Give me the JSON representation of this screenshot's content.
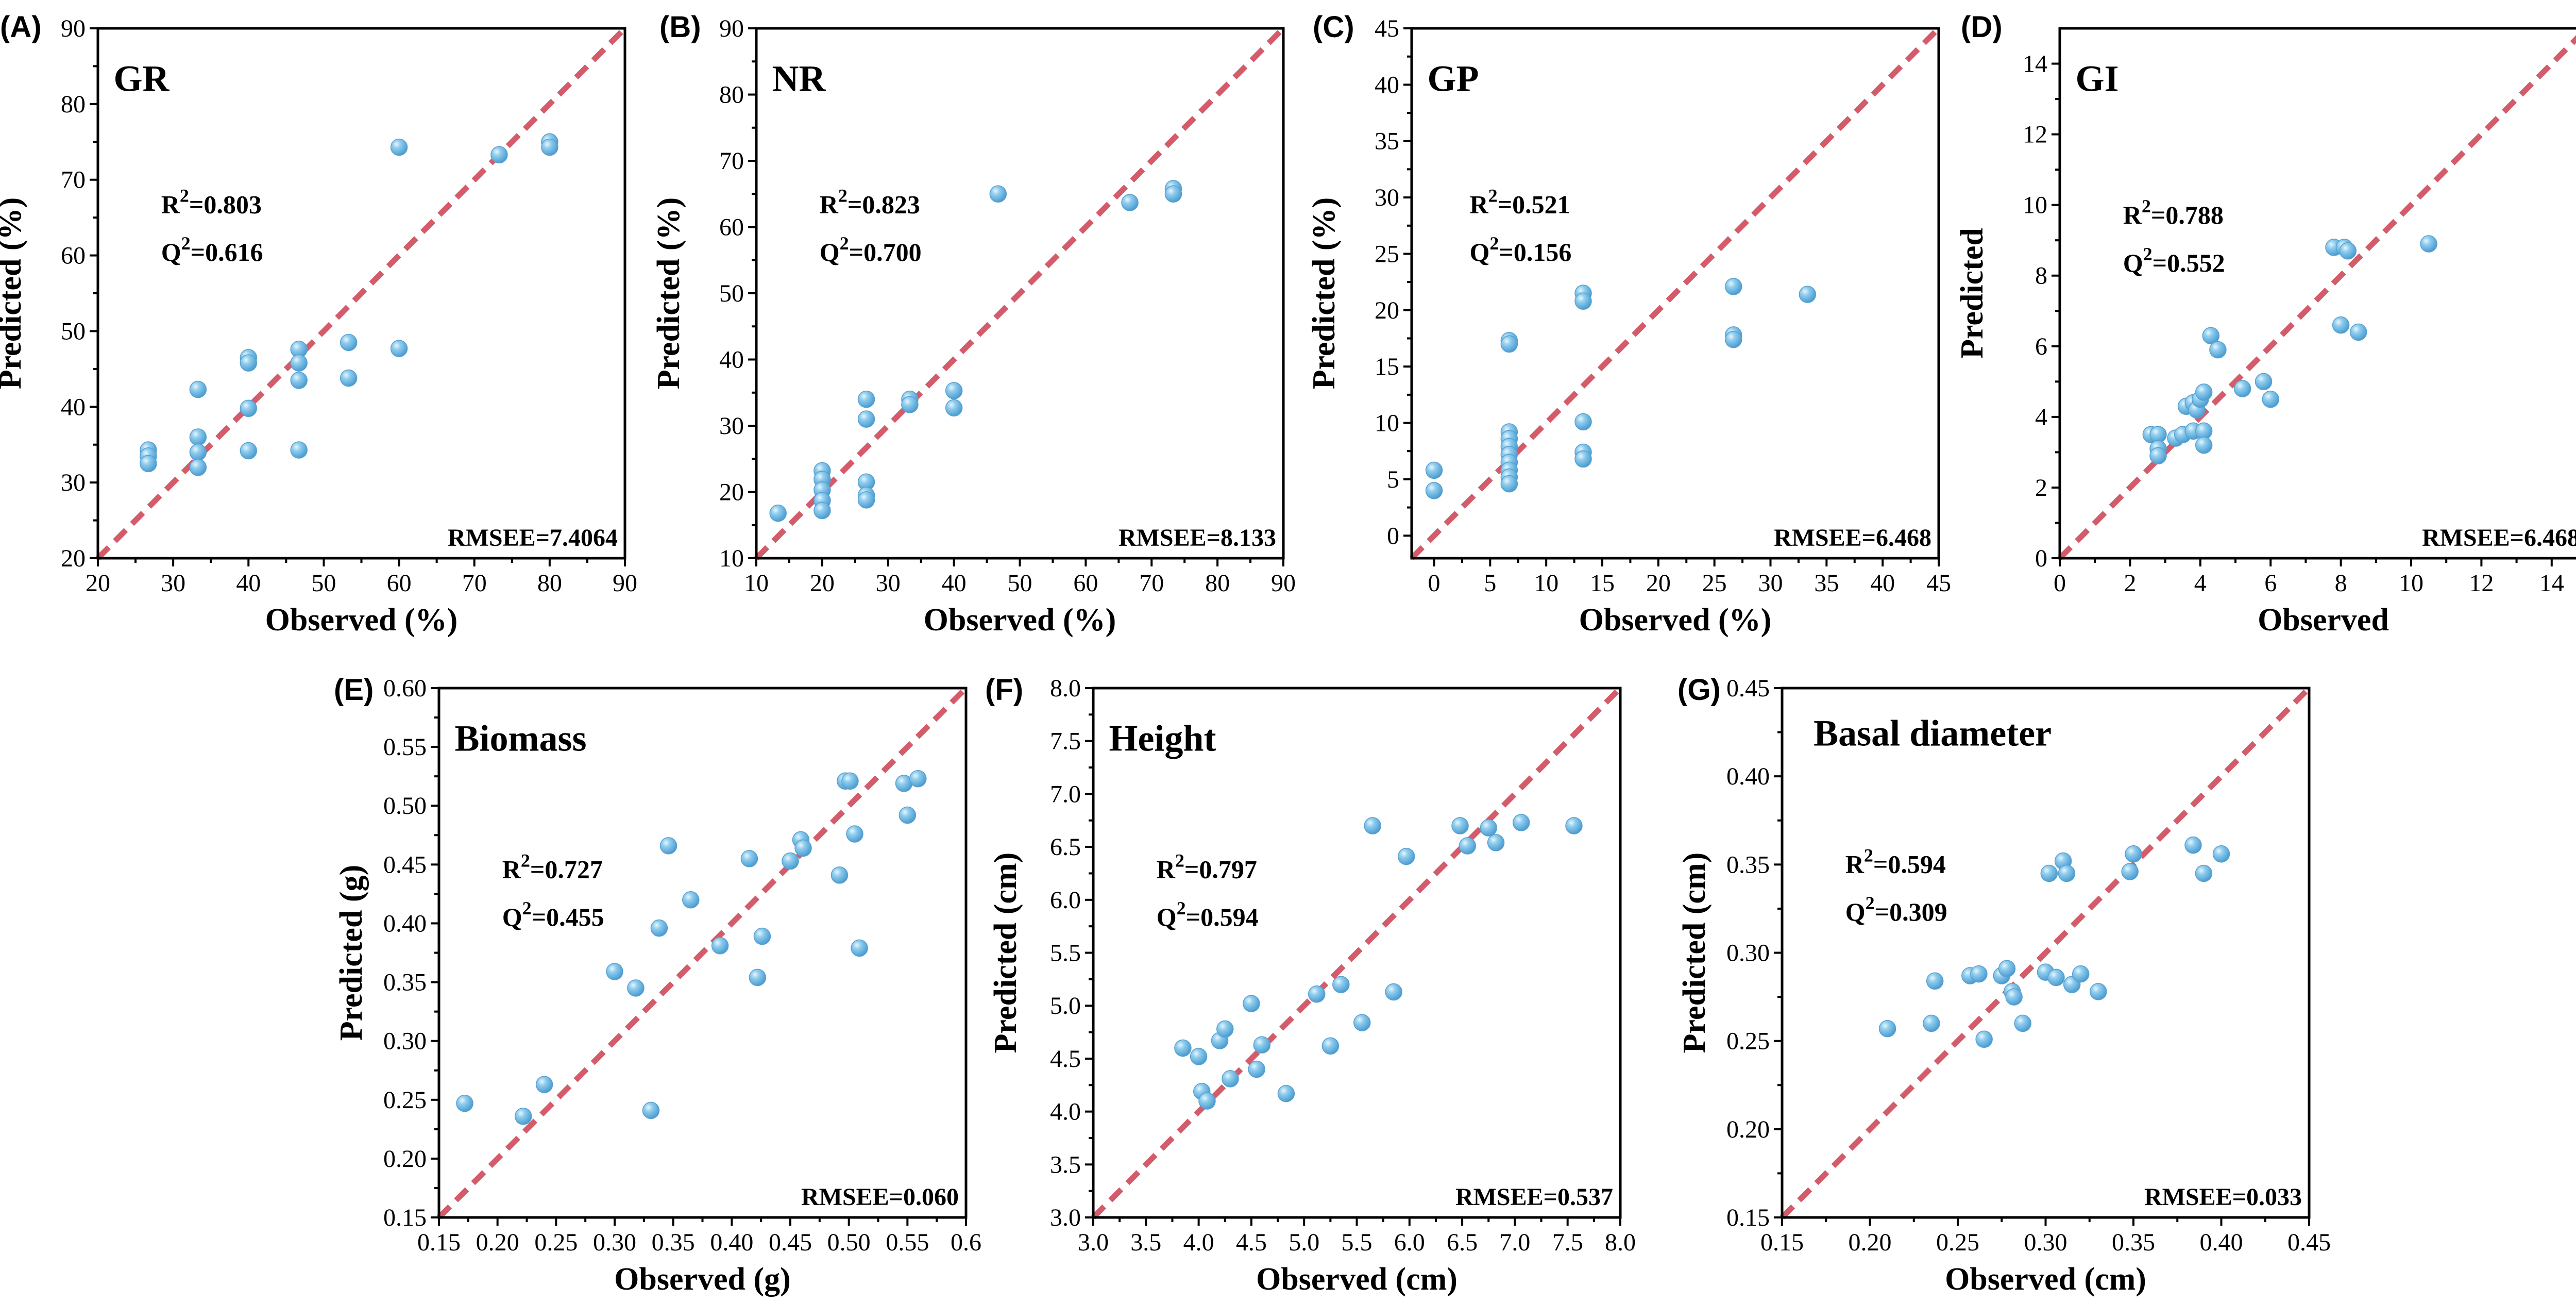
{
  "colors": {
    "point": "#6fbde6",
    "point_edge": "#5aa0cf",
    "diagonal": "#d35b6a",
    "axis": "#000000"
  },
  "chart_data": [
    {
      "id": "A",
      "letter": "(A)",
      "type": "scatter",
      "title": "GR",
      "xlabel": "Observed (%)",
      "ylabel": "Predicted (%)",
      "xlim": [
        20,
        90
      ],
      "ylim": [
        20,
        90
      ],
      "xticks": [
        20,
        30,
        40,
        50,
        60,
        70,
        80,
        90
      ],
      "xtick_labels": [
        "20",
        "30",
        "40",
        "50",
        "60",
        "70",
        "80",
        "90"
      ],
      "yticks": [
        20,
        30,
        40,
        50,
        60,
        70,
        80,
        90
      ],
      "ytick_labels": [
        "20",
        "30",
        "40",
        "50",
        "60",
        "70",
        "80",
        "90"
      ],
      "r2_base": "R",
      "r2_sup": "2",
      "r2_value": "=0.803",
      "q2_base": "Q",
      "q2_sup": "2",
      "q2_value": "=0.616",
      "rmse": "RMSEE=7.4064",
      "points": [
        [
          26.7,
          34.3
        ],
        [
          26.7,
          33.5
        ],
        [
          26.7,
          32.5
        ],
        [
          33.3,
          42.3
        ],
        [
          33.3,
          36.0
        ],
        [
          33.3,
          34.0
        ],
        [
          33.3,
          32.0
        ],
        [
          40.0,
          46.5
        ],
        [
          40.0,
          45.8
        ],
        [
          40.0,
          39.8
        ],
        [
          40.0,
          34.2
        ],
        [
          46.7,
          47.6
        ],
        [
          46.7,
          45.8
        ],
        [
          46.7,
          43.5
        ],
        [
          46.7,
          34.3
        ],
        [
          53.3,
          48.5
        ],
        [
          53.3,
          43.8
        ],
        [
          60.0,
          74.3
        ],
        [
          60.0,
          47.7
        ],
        [
          73.3,
          73.3
        ],
        [
          80.0,
          75.0
        ],
        [
          80.0,
          74.3
        ]
      ]
    },
    {
      "id": "B",
      "letter": "(B)",
      "type": "scatter",
      "title": "NR",
      "xlabel": "Observed (%)",
      "ylabel": "Predicted (%)",
      "xlim": [
        10,
        90
      ],
      "ylim": [
        10,
        90
      ],
      "xticks": [
        10,
        20,
        30,
        40,
        50,
        60,
        70,
        80,
        90
      ],
      "xtick_labels": [
        "10",
        "20",
        "30",
        "40",
        "50",
        "60",
        "70",
        "80",
        "90"
      ],
      "yticks": [
        10,
        20,
        30,
        40,
        50,
        60,
        70,
        80,
        90
      ],
      "ytick_labels": [
        "10",
        "20",
        "30",
        "40",
        "50",
        "60",
        "70",
        "80",
        "90"
      ],
      "r2_base": "R",
      "r2_sup": "2",
      "r2_value": "=0.823",
      "q2_base": "Q",
      "q2_sup": "2",
      "q2_value": "=0.700",
      "rmse": "RMSEE=8.133",
      "points": [
        [
          13.3,
          16.8
        ],
        [
          20.0,
          23.2
        ],
        [
          20.0,
          21.9
        ],
        [
          20.0,
          20.3
        ],
        [
          20.0,
          18.7
        ],
        [
          20.0,
          17.2
        ],
        [
          26.7,
          34.0
        ],
        [
          26.7,
          31.0
        ],
        [
          26.7,
          21.5
        ],
        [
          26.7,
          19.5
        ],
        [
          26.7,
          18.8
        ],
        [
          33.3,
          34.0
        ],
        [
          33.3,
          33.2
        ],
        [
          40.0,
          35.3
        ],
        [
          40.0,
          32.7
        ],
        [
          46.7,
          65.0
        ],
        [
          66.7,
          63.7
        ],
        [
          73.3,
          65.8
        ],
        [
          73.3,
          65.0
        ]
      ]
    },
    {
      "id": "C",
      "letter": "(C)",
      "type": "scatter",
      "title": "GP",
      "xlabel": "Observed (%)",
      "ylabel": "Predicted (%)",
      "xlim": [
        -2,
        45
      ],
      "ylim": [
        -2,
        45
      ],
      "xticks": [
        0,
        5,
        10,
        15,
        20,
        25,
        30,
        35,
        40,
        45
      ],
      "xtick_labels": [
        "0",
        "5",
        "10",
        "15",
        "20",
        "25",
        "30",
        "35",
        "40",
        "45"
      ],
      "yticks": [
        0,
        5,
        10,
        15,
        20,
        25,
        30,
        35,
        40,
        45
      ],
      "ytick_labels": [
        "0",
        "5",
        "10",
        "15",
        "20",
        "25",
        "30",
        "35",
        "40",
        "45"
      ],
      "r2_base": "R",
      "r2_sup": "2",
      "r2_value": "=0.521",
      "q2_base": "Q",
      "q2_sup": "2",
      "q2_value": "=0.156",
      "rmse": "RMSEE=6.468",
      "points": [
        [
          0,
          5.8
        ],
        [
          0,
          4.0
        ],
        [
          6.7,
          17.3
        ],
        [
          6.7,
          17.0
        ],
        [
          6.7,
          9.2
        ],
        [
          6.7,
          8.6
        ],
        [
          6.7,
          7.9
        ],
        [
          6.7,
          7.2
        ],
        [
          6.7,
          6.5
        ],
        [
          6.7,
          5.8
        ],
        [
          6.7,
          5.2
        ],
        [
          6.7,
          4.6
        ],
        [
          13.3,
          21.5
        ],
        [
          13.3,
          20.8
        ],
        [
          13.3,
          10.1
        ],
        [
          13.3,
          7.4
        ],
        [
          13.3,
          6.8
        ],
        [
          26.7,
          22.1
        ],
        [
          26.7,
          17.8
        ],
        [
          26.7,
          17.4
        ],
        [
          33.3,
          21.4
        ]
      ]
    },
    {
      "id": "D",
      "letter": "(D)",
      "type": "scatter",
      "title": "GI",
      "xlabel": "Observed",
      "ylabel": "Predicted",
      "xlim": [
        0,
        15
      ],
      "ylim": [
        0,
        15
      ],
      "xticks": [
        0,
        2,
        4,
        6,
        8,
        10,
        12,
        14
      ],
      "xtick_labels": [
        "0",
        "2",
        "4",
        "6",
        "8",
        "10",
        "12",
        "14"
      ],
      "yticks": [
        0,
        2,
        4,
        6,
        8,
        10,
        12,
        14
      ],
      "ytick_labels": [
        "0",
        "2",
        "4",
        "6",
        "8",
        "10",
        "12",
        "14"
      ],
      "r2_base": "R",
      "r2_sup": "2",
      "r2_value": "=0.788",
      "q2_base": "Q",
      "q2_sup": "2",
      "q2_value": "=0.552",
      "rmse": "RMSEE=6.468",
      "points": [
        [
          2.6,
          3.5
        ],
        [
          2.8,
          3.5
        ],
        [
          2.8,
          3.1
        ],
        [
          2.8,
          2.9
        ],
        [
          3.3,
          3.4
        ],
        [
          3.5,
          3.5
        ],
        [
          3.6,
          4.3
        ],
        [
          3.8,
          4.4
        ],
        [
          3.8,
          3.6
        ],
        [
          3.9,
          4.2
        ],
        [
          4.0,
          4.5
        ],
        [
          4.1,
          4.7
        ],
        [
          4.1,
          3.6
        ],
        [
          4.1,
          3.2
        ],
        [
          4.3,
          6.3
        ],
        [
          4.5,
          5.9
        ],
        [
          5.2,
          4.8
        ],
        [
          5.8,
          5.0
        ],
        [
          6.0,
          4.5
        ],
        [
          7.8,
          8.8
        ],
        [
          8.0,
          6.6
        ],
        [
          8.1,
          8.8
        ],
        [
          8.2,
          8.7
        ],
        [
          8.5,
          6.4
        ],
        [
          10.5,
          8.9
        ]
      ]
    },
    {
      "id": "E",
      "letter": "(E)",
      "type": "scatter",
      "title": "Biomass",
      "xlabel": "Observed (g)",
      "ylabel": "Predicted (g)",
      "xlim": [
        0.15,
        0.6
      ],
      "ylim": [
        0.15,
        0.6
      ],
      "xticks": [
        0.15,
        0.2,
        0.25,
        0.3,
        0.35,
        0.4,
        0.45,
        0.5,
        0.55,
        0.6
      ],
      "xtick_labels": [
        "0.15",
        "0.20",
        "0.25",
        "0.30",
        "0.35",
        "0.40",
        "0.45",
        "0.50",
        "0.55",
        "0.6"
      ],
      "yticks": [
        0.15,
        0.2,
        0.25,
        0.3,
        0.35,
        0.4,
        0.45,
        0.5,
        0.55,
        0.6
      ],
      "ytick_labels": [
        "0.15",
        "0.20",
        "0.25",
        "0.30",
        "0.35",
        "0.40",
        "0.45",
        "0.50",
        "0.55",
        "0.60"
      ],
      "r2_base": "R",
      "r2_sup": "2",
      "r2_value": "=0.727",
      "q2_base": "Q",
      "q2_sup": "2",
      "q2_value": "=0.455",
      "rmse": "RMSEE=0.060",
      "points": [
        [
          0.172,
          0.247
        ],
        [
          0.222,
          0.236
        ],
        [
          0.24,
          0.263
        ],
        [
          0.3,
          0.359
        ],
        [
          0.318,
          0.345
        ],
        [
          0.331,
          0.241
        ],
        [
          0.338,
          0.396
        ],
        [
          0.346,
          0.466
        ],
        [
          0.365,
          0.42
        ],
        [
          0.39,
          0.381
        ],
        [
          0.415,
          0.455
        ],
        [
          0.422,
          0.354
        ],
        [
          0.426,
          0.389
        ],
        [
          0.45,
          0.453
        ],
        [
          0.459,
          0.471
        ],
        [
          0.461,
          0.464
        ],
        [
          0.492,
          0.441
        ],
        [
          0.497,
          0.521
        ],
        [
          0.501,
          0.521
        ],
        [
          0.505,
          0.476
        ],
        [
          0.509,
          0.379
        ],
        [
          0.547,
          0.519
        ],
        [
          0.55,
          0.492
        ],
        [
          0.559,
          0.523
        ]
      ]
    },
    {
      "id": "F",
      "letter": "(F)",
      "type": "scatter",
      "title": "Height",
      "xlabel": "Observed (cm)",
      "ylabel": "Predicted (cm)",
      "xlim": [
        3.0,
        8.0
      ],
      "ylim": [
        3.0,
        8.0
      ],
      "xticks": [
        3.0,
        3.5,
        4.0,
        4.5,
        5.0,
        5.5,
        6.0,
        6.5,
        7.0,
        7.5,
        8.0
      ],
      "xtick_labels": [
        "3.0",
        "3.5",
        "4.0",
        "4.5",
        "5.0",
        "5.5",
        "6.0",
        "6.5",
        "7.0",
        "7.5",
        "8.0"
      ],
      "yticks": [
        3.0,
        3.5,
        4.0,
        4.5,
        5.0,
        5.5,
        6.0,
        6.5,
        7.0,
        7.5,
        8.0
      ],
      "ytick_labels": [
        "3.0",
        "3.5",
        "4.0",
        "4.5",
        "5.0",
        "5.5",
        "6.0",
        "6.5",
        "7.0",
        "7.5",
        "8.0"
      ],
      "r2_base": "R",
      "r2_sup": "2",
      "r2_value": "=0.797",
      "q2_base": "Q",
      "q2_sup": "2",
      "q2_value": "=0.594",
      "rmse": "RMSEE=0.537",
      "points": [
        [
          3.85,
          4.6
        ],
        [
          4.0,
          4.52
        ],
        [
          4.03,
          4.19
        ],
        [
          4.08,
          4.1
        ],
        [
          4.2,
          4.67
        ],
        [
          4.25,
          4.78
        ],
        [
          4.3,
          4.31
        ],
        [
          4.5,
          5.02
        ],
        [
          4.55,
          4.4
        ],
        [
          4.6,
          4.63
        ],
        [
          4.83,
          4.17
        ],
        [
          5.12,
          5.11
        ],
        [
          5.25,
          4.62
        ],
        [
          5.35,
          5.2
        ],
        [
          5.55,
          4.84
        ],
        [
          5.65,
          6.7
        ],
        [
          5.85,
          5.13
        ],
        [
          5.97,
          6.41
        ],
        [
          6.48,
          6.7
        ],
        [
          6.55,
          6.51
        ],
        [
          6.75,
          6.68
        ],
        [
          6.82,
          6.54
        ],
        [
          7.06,
          6.73
        ],
        [
          7.56,
          6.7
        ]
      ]
    },
    {
      "id": "G",
      "letter": "(G)",
      "type": "scatter",
      "title": "Basal diameter",
      "xlabel": "Observed (cm)",
      "ylabel": "Predicted (cm)",
      "xlim": [
        0.15,
        0.45
      ],
      "ylim": [
        0.15,
        0.45
      ],
      "xticks": [
        0.15,
        0.2,
        0.25,
        0.3,
        0.35,
        0.4,
        0.45
      ],
      "xtick_labels": [
        "0.15",
        "0.20",
        "0.25",
        "0.30",
        "0.35",
        "0.40",
        "0.45"
      ],
      "yticks": [
        0.15,
        0.2,
        0.25,
        0.3,
        0.35,
        0.4,
        0.45
      ],
      "ytick_labels": [
        "0.15",
        "0.20",
        "0.25",
        "0.30",
        "0.35",
        "0.40",
        "0.45"
      ],
      "r2_base": "R",
      "r2_sup": "2",
      "r2_value": "=0.594",
      "q2_base": "Q",
      "q2_sup": "2",
      "q2_value": "=0.309",
      "rmse": "RMSEE=0.033",
      "points": [
        [
          0.21,
          0.257
        ],
        [
          0.235,
          0.26
        ],
        [
          0.237,
          0.284
        ],
        [
          0.257,
          0.287
        ],
        [
          0.262,
          0.288
        ],
        [
          0.265,
          0.251
        ],
        [
          0.275,
          0.287
        ],
        [
          0.278,
          0.291
        ],
        [
          0.281,
          0.278
        ],
        [
          0.282,
          0.275
        ],
        [
          0.287,
          0.26
        ],
        [
          0.3,
          0.289
        ],
        [
          0.302,
          0.345
        ],
        [
          0.306,
          0.286
        ],
        [
          0.31,
          0.352
        ],
        [
          0.312,
          0.345
        ],
        [
          0.315,
          0.282
        ],
        [
          0.32,
          0.288
        ],
        [
          0.33,
          0.278
        ],
        [
          0.348,
          0.346
        ],
        [
          0.35,
          0.356
        ],
        [
          0.384,
          0.361
        ],
        [
          0.39,
          0.345
        ],
        [
          0.4,
          0.356
        ]
      ]
    }
  ]
}
